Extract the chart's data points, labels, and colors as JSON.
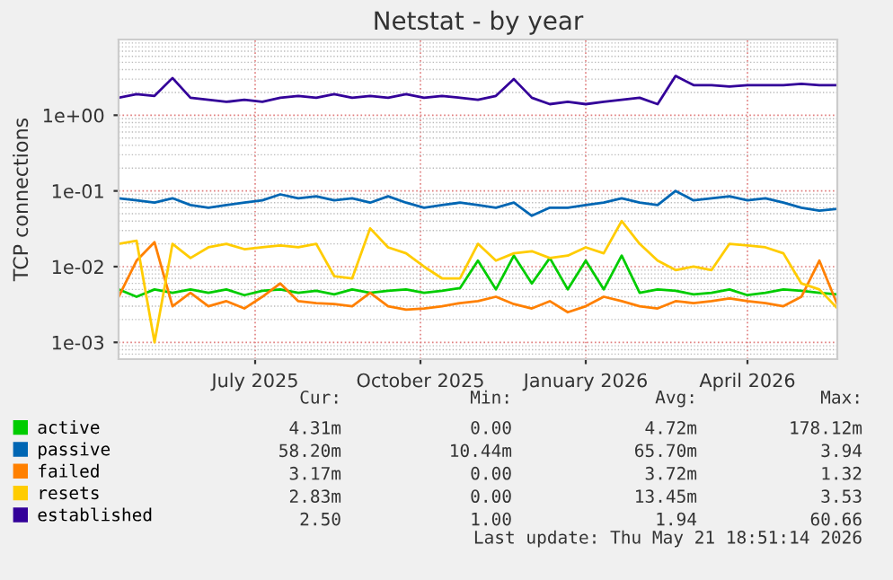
{
  "chart_data": {
    "type": "line",
    "title": "Netstat - by year",
    "ylabel": "TCP connections",
    "log": true,
    "grid": true,
    "legend": "bottom left",
    "marker": "none",
    "line_style": "solid",
    "xlim": [
      "2025-04-16",
      "2026-05-21"
    ],
    "xticks": [
      {
        "value": "2025-07-01",
        "label": "July 2025"
      },
      {
        "value": "2025-10-01",
        "label": "October 2025"
      },
      {
        "value": "2026-01-01",
        "label": "January 2026"
      },
      {
        "value": "2026-04-01",
        "label": "April 2026"
      }
    ],
    "ylim": [
      0.0006,
      10
    ],
    "yticks": [
      {
        "value": 0.001,
        "label": "1e-03"
      },
      {
        "value": 0.01,
        "label": "1e-02"
      },
      {
        "value": 0.1,
        "label": "1e-01"
      },
      {
        "value": 1,
        "label": "1e+00"
      }
    ],
    "x": [
      "2025-04-16",
      "2025-04-26",
      "2025-05-06",
      "2025-05-16",
      "2025-05-26",
      "2025-06-05",
      "2025-06-15",
      "2025-06-25",
      "2025-07-05",
      "2025-07-15",
      "2025-07-25",
      "2025-08-04",
      "2025-08-14",
      "2025-08-24",
      "2025-09-03",
      "2025-09-13",
      "2025-09-23",
      "2025-10-03",
      "2025-10-13",
      "2025-10-23",
      "2025-11-02",
      "2025-11-12",
      "2025-11-22",
      "2025-12-02",
      "2025-12-12",
      "2025-12-22",
      "2026-01-01",
      "2026-01-11",
      "2026-01-21",
      "2026-01-31",
      "2026-02-10",
      "2026-02-20",
      "2026-03-02",
      "2026-03-12",
      "2026-03-22",
      "2026-04-01",
      "2026-04-11",
      "2026-04-21",
      "2026-05-01",
      "2026-05-11",
      "2026-05-21"
    ],
    "series": [
      {
        "name": "active",
        "color": "#00cc00",
        "values": [
          0.005,
          0.004,
          0.005,
          0.0045,
          0.005,
          0.0045,
          0.005,
          0.0042,
          0.0048,
          0.005,
          0.0045,
          0.0048,
          0.0043,
          0.005,
          0.0045,
          0.0048,
          0.005,
          0.0045,
          0.0048,
          0.0052,
          0.012,
          0.005,
          0.014,
          0.006,
          0.013,
          0.005,
          0.012,
          0.005,
          0.014,
          0.0045,
          0.005,
          0.0048,
          0.0043,
          0.0045,
          0.005,
          0.0042,
          0.0045,
          0.005,
          0.0048,
          0.0045,
          0.00431
        ]
      },
      {
        "name": "passive",
        "color": "#0066b3",
        "values": [
          0.08,
          0.075,
          0.07,
          0.08,
          0.065,
          0.06,
          0.065,
          0.07,
          0.075,
          0.09,
          0.08,
          0.085,
          0.075,
          0.08,
          0.07,
          0.085,
          0.07,
          0.06,
          0.065,
          0.07,
          0.065,
          0.06,
          0.07,
          0.047,
          0.06,
          0.06,
          0.065,
          0.07,
          0.08,
          0.07,
          0.065,
          0.1,
          0.075,
          0.08,
          0.085,
          0.075,
          0.08,
          0.07,
          0.06,
          0.055,
          0.058
        ]
      },
      {
        "name": "failed",
        "color": "#ff8000",
        "values": [
          0.004,
          0.012,
          0.021,
          0.003,
          0.0045,
          0.003,
          0.0035,
          0.0028,
          0.004,
          0.006,
          0.0035,
          0.0033,
          0.0032,
          0.003,
          0.0045,
          0.003,
          0.0027,
          0.0028,
          0.003,
          0.0033,
          0.0035,
          0.004,
          0.0032,
          0.0028,
          0.0035,
          0.0025,
          0.003,
          0.004,
          0.0035,
          0.003,
          0.0028,
          0.0035,
          0.0033,
          0.0035,
          0.0038,
          0.0035,
          0.0033,
          0.003,
          0.004,
          0.012,
          0.00317
        ]
      },
      {
        "name": "resets",
        "color": "#ffcc00",
        "values": [
          0.02,
          0.022,
          0.001,
          0.02,
          0.013,
          0.018,
          0.02,
          0.017,
          0.018,
          0.019,
          0.018,
          0.02,
          0.0075,
          0.007,
          0.032,
          0.018,
          0.015,
          0.01,
          0.007,
          0.007,
          0.02,
          0.012,
          0.015,
          0.016,
          0.013,
          0.014,
          0.018,
          0.015,
          0.04,
          0.02,
          0.012,
          0.009,
          0.01,
          0.009,
          0.02,
          0.019,
          0.018,
          0.015,
          0.006,
          0.005,
          0.00283
        ]
      },
      {
        "name": "established",
        "color": "#330099",
        "values": [
          1.7,
          1.9,
          1.8,
          3.1,
          1.7,
          1.6,
          1.5,
          1.6,
          1.5,
          1.7,
          1.8,
          1.7,
          1.9,
          1.7,
          1.8,
          1.7,
          1.9,
          1.7,
          1.8,
          1.7,
          1.6,
          1.8,
          3.0,
          1.7,
          1.4,
          1.5,
          1.4,
          1.5,
          1.6,
          1.7,
          1.4,
          3.3,
          2.5,
          2.5,
          2.4,
          2.5,
          2.5,
          2.5,
          2.6,
          2.5,
          2.5
        ]
      }
    ],
    "annotations": [
      "Cur:",
      "Min:",
      "Avg:",
      "Max:",
      "4.31m",
      "0.00",
      "4.72m",
      "178.12m",
      "58.20m",
      "10.44m",
      "65.70m",
      "3.94",
      "3.17m",
      "0.00",
      "3.72m",
      "1.32",
      "2.83m",
      "0.00",
      "13.45m",
      "3.53",
      "2.50",
      "1.00",
      "1.94",
      "60.66",
      "Last update: Thu May 21 18:51:14 2026"
    ]
  }
}
